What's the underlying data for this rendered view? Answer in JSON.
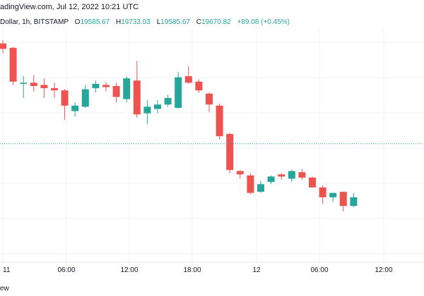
{
  "header": {
    "source_line": "adingView.com, Jul 12, 2022 10:21 UTC"
  },
  "legend": {
    "symbol": "Dollar, 1h, BITSTAMP",
    "open_label": "O",
    "open": "19585.67",
    "high_label": "H",
    "high": "19733.03",
    "low_label": "L",
    "low": "19585.67",
    "close_label": "C",
    "close": "19670.82",
    "change": "+89.08 (+0.45%)"
  },
  "footer": {
    "label": "ew"
  },
  "colors": {
    "up": "#26a69a",
    "down": "#ef5350",
    "grid": "#f0f3fa",
    "last_price_line": "#26a69a",
    "axis_text": "#131722"
  },
  "chart_data": {
    "type": "candlestick",
    "x_tick_labels": [
      "11",
      "06:00",
      "12:00",
      "18:00",
      "12",
      "06:00",
      "12:00"
    ],
    "last_price_line": 19670.82,
    "grid": true,
    "candles": [
      {
        "o": 20130,
        "h": 20145,
        "l": 20085,
        "c": 20105
      },
      {
        "o": 20110,
        "h": 20115,
        "l": 19940,
        "c": 19955
      },
      {
        "o": 19945,
        "h": 19980,
        "l": 19880,
        "c": 19950
      },
      {
        "o": 19950,
        "h": 19985,
        "l": 19910,
        "c": 19935
      },
      {
        "o": 19940,
        "h": 19970,
        "l": 19880,
        "c": 19925
      },
      {
        "o": 19925,
        "h": 19950,
        "l": 19880,
        "c": 19915
      },
      {
        "o": 19915,
        "h": 19920,
        "l": 19780,
        "c": 19845
      },
      {
        "o": 19820,
        "h": 19860,
        "l": 19795,
        "c": 19845
      },
      {
        "o": 19840,
        "h": 19940,
        "l": 19835,
        "c": 19920
      },
      {
        "o": 19925,
        "h": 19960,
        "l": 19905,
        "c": 19945
      },
      {
        "o": 19940,
        "h": 19955,
        "l": 19910,
        "c": 19930
      },
      {
        "o": 19935,
        "h": 19950,
        "l": 19860,
        "c": 19885
      },
      {
        "o": 19875,
        "h": 19980,
        "l": 19860,
        "c": 19970
      },
      {
        "o": 19960,
        "h": 20050,
        "l": 19790,
        "c": 19805
      },
      {
        "o": 19810,
        "h": 19870,
        "l": 19760,
        "c": 19840
      },
      {
        "o": 19830,
        "h": 19870,
        "l": 19810,
        "c": 19850
      },
      {
        "o": 19850,
        "h": 19895,
        "l": 19840,
        "c": 19880
      },
      {
        "o": 19835,
        "h": 20000,
        "l": 19830,
        "c": 19975
      },
      {
        "o": 19980,
        "h": 20025,
        "l": 19945,
        "c": 19950
      },
      {
        "o": 19955,
        "h": 19965,
        "l": 19905,
        "c": 19915
      },
      {
        "o": 19900,
        "h": 19905,
        "l": 19815,
        "c": 19850
      },
      {
        "o": 19845,
        "h": 19855,
        "l": 19690,
        "c": 19705
      },
      {
        "o": 19715,
        "h": 19720,
        "l": 19535,
        "c": 19550
      },
      {
        "o": 19545,
        "h": 19550,
        "l": 19510,
        "c": 19530
      },
      {
        "o": 19525,
        "h": 19535,
        "l": 19440,
        "c": 19445
      },
      {
        "o": 19450,
        "h": 19500,
        "l": 19445,
        "c": 19485
      },
      {
        "o": 19495,
        "h": 19525,
        "l": 19485,
        "c": 19520
      },
      {
        "o": 19530,
        "h": 19535,
        "l": 19505,
        "c": 19520
      },
      {
        "o": 19510,
        "h": 19550,
        "l": 19495,
        "c": 19545
      },
      {
        "o": 19540,
        "h": 19555,
        "l": 19505,
        "c": 19515
      },
      {
        "o": 19515,
        "h": 19520,
        "l": 19470,
        "c": 19470
      },
      {
        "o": 19470,
        "h": 19480,
        "l": 19395,
        "c": 19425
      },
      {
        "o": 19425,
        "h": 19445,
        "l": 19405,
        "c": 19445
      },
      {
        "o": 19450,
        "h": 19450,
        "l": 19360,
        "c": 19385
      },
      {
        "o": 19385,
        "h": 19445,
        "l": 19380,
        "c": 19425
      }
    ]
  }
}
